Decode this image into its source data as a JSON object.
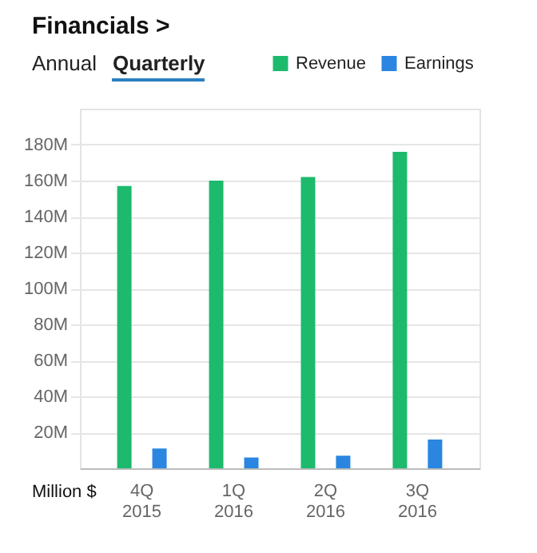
{
  "chart_data": {
    "type": "bar",
    "title": "Financials >",
    "annotations": [
      "Annual",
      "Quarterly",
      "Million $"
    ],
    "categories": [
      "4Q 2015",
      "1Q 2016",
      "2Q 2016",
      "3Q 2016"
    ],
    "series": [
      {
        "name": "Revenue",
        "color": "#1dba6e",
        "values": [
          157,
          160,
          162,
          176
        ]
      },
      {
        "name": "Earnings",
        "color": "#2a86e0",
        "values": [
          11,
          6,
          7,
          16
        ]
      }
    ],
    "ylim": [
      0,
      200
    ],
    "yticks": [
      {
        "value": 20,
        "label": "20M"
      },
      {
        "value": 40,
        "label": "40M"
      },
      {
        "value": 60,
        "label": "60M"
      },
      {
        "value": 80,
        "label": "80M"
      },
      {
        "value": 100,
        "label": "100M"
      },
      {
        "value": 120,
        "label": "120M"
      },
      {
        "value": 140,
        "label": "140M"
      },
      {
        "value": 160,
        "label": "160M"
      },
      {
        "value": 180,
        "label": "180M"
      }
    ],
    "grid": "y",
    "legend": "top right"
  }
}
